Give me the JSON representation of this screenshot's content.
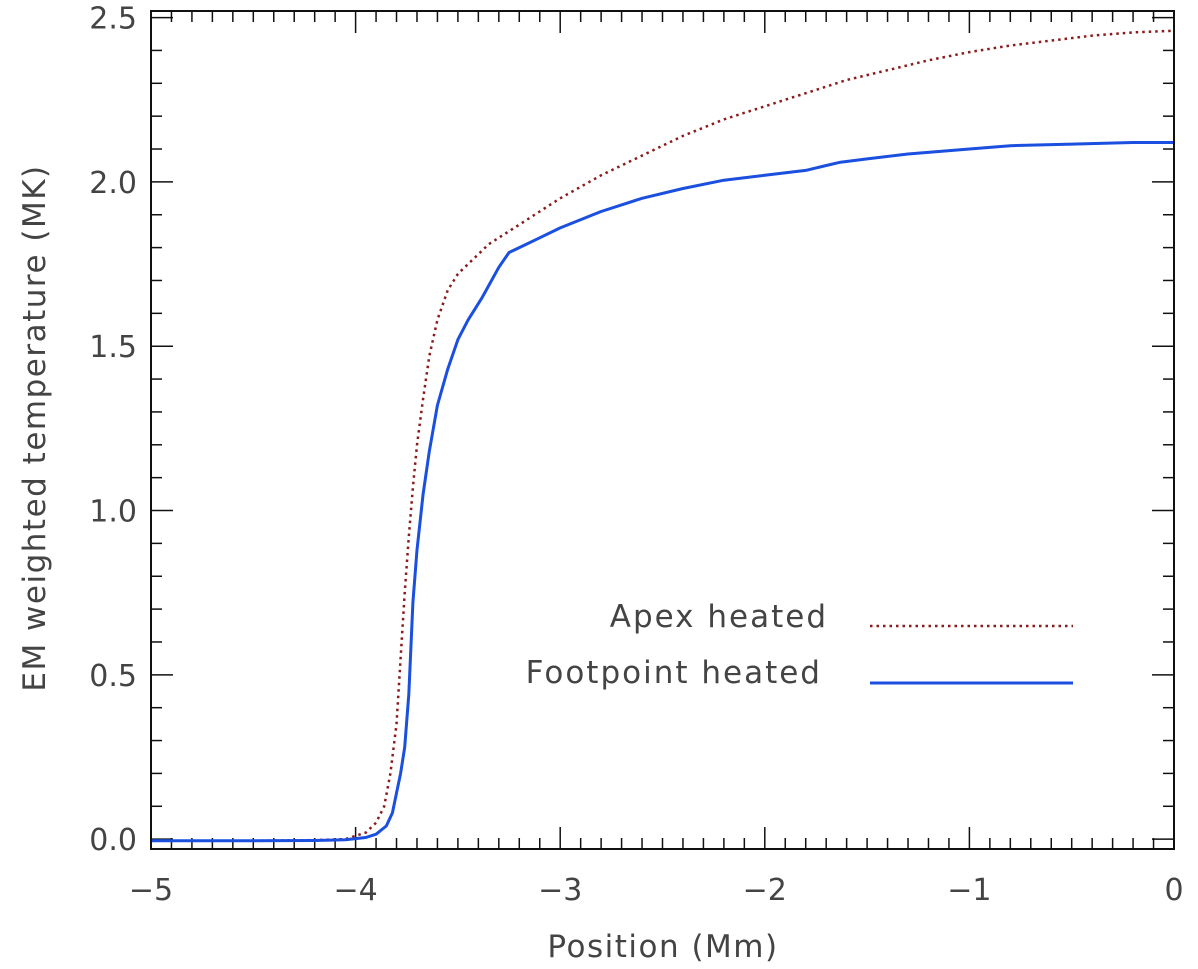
{
  "chart_data": {
    "type": "line",
    "xlabel": "Position (Mm)",
    "ylabel": "EM weighted temperature (MK)",
    "xlim": [
      -5,
      0
    ],
    "ylim": [
      -0.03,
      2.52
    ],
    "x_ticks": [
      -5,
      -4,
      -3,
      -2,
      -1,
      0
    ],
    "x_tick_labels": [
      "−5",
      "−4",
      "−3",
      "−2",
      "−1",
      "0"
    ],
    "y_ticks": [
      0.0,
      0.5,
      1.0,
      1.5,
      2.0,
      2.5
    ],
    "y_tick_labels": [
      "0.0",
      "0.5",
      "1.0",
      "1.5",
      "2.0",
      "2.5"
    ],
    "x_minor_step": 0.1,
    "y_minor_step": 0.1,
    "grid": false,
    "legend_position": "lower-right",
    "series": [
      {
        "name": "Apex heated",
        "color": "#8b1a1a",
        "style": "dotted",
        "x": [
          -5.0,
          -4.5,
          -4.2,
          -4.05,
          -3.95,
          -3.9,
          -3.86,
          -3.83,
          -3.8,
          -3.78,
          -3.76,
          -3.74,
          -3.72,
          -3.7,
          -3.67,
          -3.64,
          -3.6,
          -3.55,
          -3.5,
          -3.45,
          -3.4,
          -3.35,
          -3.3,
          -3.2,
          -3.1,
          -3.0,
          -2.8,
          -2.6,
          -2.4,
          -2.2,
          -2.0,
          -1.8,
          -1.6,
          -1.4,
          -1.2,
          -1.0,
          -0.8,
          -0.6,
          -0.4,
          -0.2,
          0.0
        ],
        "y": [
          -0.005,
          -0.005,
          -0.003,
          0.0,
          0.02,
          0.05,
          0.1,
          0.2,
          0.35,
          0.55,
          0.75,
          0.92,
          1.07,
          1.2,
          1.34,
          1.47,
          1.58,
          1.67,
          1.72,
          1.75,
          1.78,
          1.81,
          1.83,
          1.87,
          1.91,
          1.95,
          2.02,
          2.08,
          2.14,
          2.19,
          2.23,
          2.27,
          2.31,
          2.34,
          2.37,
          2.395,
          2.415,
          2.43,
          2.445,
          2.455,
          2.46
        ]
      },
      {
        "name": "Footpoint heated",
        "color": "#1a4fe0",
        "style": "solid",
        "x": [
          -5.0,
          -4.5,
          -4.2,
          -4.05,
          -3.95,
          -3.9,
          -3.85,
          -3.82,
          -3.8,
          -3.78,
          -3.76,
          -3.74,
          -3.72,
          -3.7,
          -3.67,
          -3.64,
          -3.6,
          -3.55,
          -3.5,
          -3.45,
          -3.42,
          -3.38,
          -3.3,
          -3.25,
          -3.2,
          -3.1,
          -3.0,
          -2.8,
          -2.6,
          -2.4,
          -2.2,
          -2.0,
          -1.8,
          -1.7,
          -1.63,
          -1.5,
          -1.3,
          -1.0,
          -0.8,
          -0.5,
          -0.2,
          0.0
        ],
        "y": [
          -0.005,
          -0.005,
          -0.004,
          -0.002,
          0.005,
          0.015,
          0.04,
          0.08,
          0.14,
          0.2,
          0.28,
          0.44,
          0.72,
          0.88,
          1.05,
          1.18,
          1.32,
          1.43,
          1.52,
          1.58,
          1.61,
          1.65,
          1.74,
          1.785,
          1.8,
          1.83,
          1.86,
          1.91,
          1.95,
          1.98,
          2.005,
          2.02,
          2.035,
          2.05,
          2.06,
          2.07,
          2.085,
          2.1,
          2.11,
          2.115,
          2.12,
          2.12
        ]
      }
    ]
  }
}
